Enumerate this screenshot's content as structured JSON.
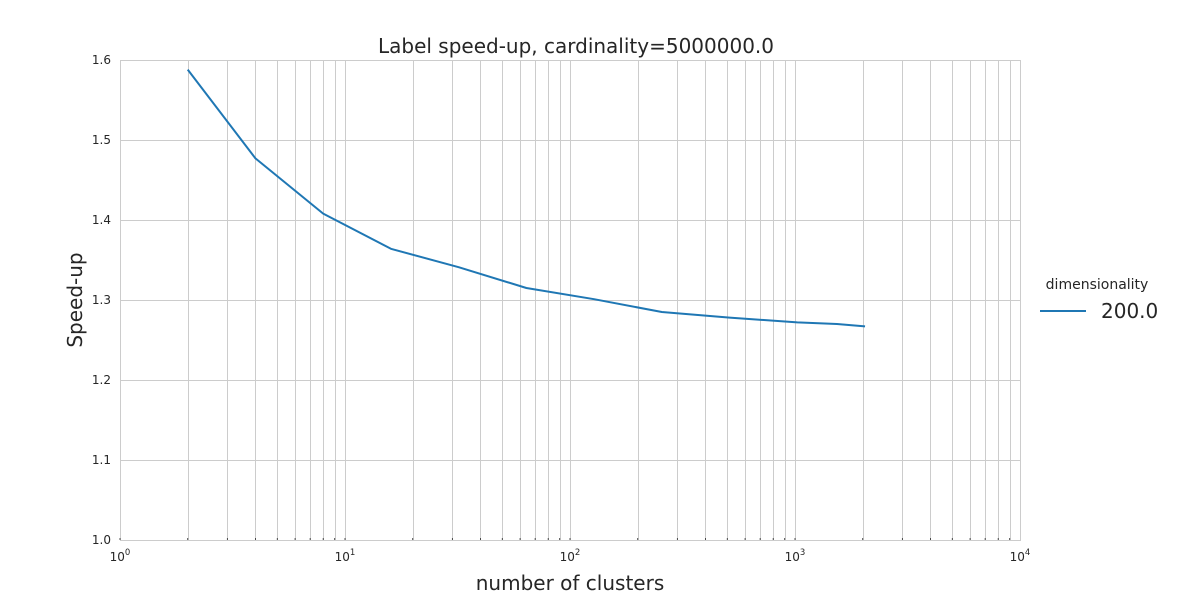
{
  "chart_data": {
    "type": "line",
    "title": "Label speed-up, cardinality=5000000.0",
    "xlabel": "number of clusters",
    "ylabel": "Speed-up",
    "xscale": "log",
    "xlim": [
      1,
      10000
    ],
    "ylim": [
      1.0,
      1.6
    ],
    "grid": true,
    "legend": {
      "title": "dimensionality",
      "placement": "right, outside plot"
    },
    "x_ticks": [
      {
        "base": "10",
        "exp": "0"
      },
      {
        "base": "10",
        "exp": "1"
      },
      {
        "base": "10",
        "exp": "2"
      },
      {
        "base": "10",
        "exp": "3"
      },
      {
        "base": "10",
        "exp": "4"
      }
    ],
    "y_ticks": [
      "1.0",
      "1.1",
      "1.2",
      "1.3",
      "1.4",
      "1.5",
      "1.6"
    ],
    "series": [
      {
        "name": "200.0",
        "color": "#1f77b4",
        "x": [
          2,
          4,
          8,
          16,
          32,
          64,
          128,
          256,
          512,
          1024,
          1536,
          2048
        ],
        "y": [
          1.588,
          1.477,
          1.408,
          1.364,
          1.341,
          1.315,
          1.301,
          1.285,
          1.278,
          1.272,
          1.27,
          1.267
        ]
      }
    ]
  }
}
